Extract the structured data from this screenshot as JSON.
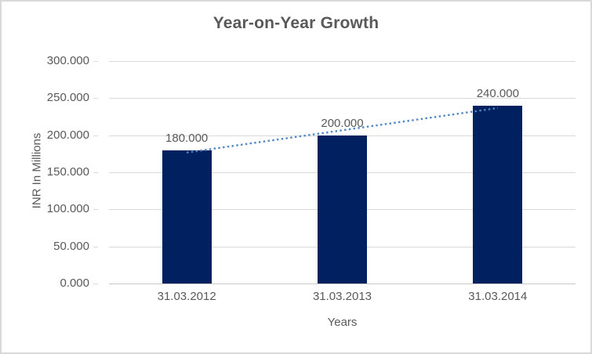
{
  "chart": {
    "title": "Year-on-Year Growth",
    "y_axis_title": "INR In Millions",
    "x_axis_title": "Years"
  },
  "chart_data": {
    "type": "bar",
    "title": "Year-on-Year Growth",
    "xlabel": "Years",
    "ylabel": "INR In Millions",
    "categories": [
      "31.03.2012",
      "31.03.2013",
      "31.03.2014"
    ],
    "values": [
      180,
      200,
      240
    ],
    "data_labels": [
      "180.000",
      "200.000",
      "240.000"
    ],
    "ylim": [
      0,
      300
    ],
    "y_tick_interval": 50,
    "y_tick_labels": [
      "0.000",
      "50.000",
      "100.000",
      "150.000",
      "200.000",
      "250.000",
      "300.000"
    ],
    "grid": "horizontal",
    "legend": "none",
    "trendline": {
      "type": "linear",
      "style": "dotted",
      "applies_to": "values"
    }
  },
  "colors": {
    "bar": "#002060",
    "trendline": "#4E86C8",
    "gridline": "#D9D9D9",
    "axis_line": "#C9C9C9",
    "text": "#595959",
    "title_text": "#595959",
    "background": "#FFFFFF",
    "border": "#D9D9D9"
  }
}
